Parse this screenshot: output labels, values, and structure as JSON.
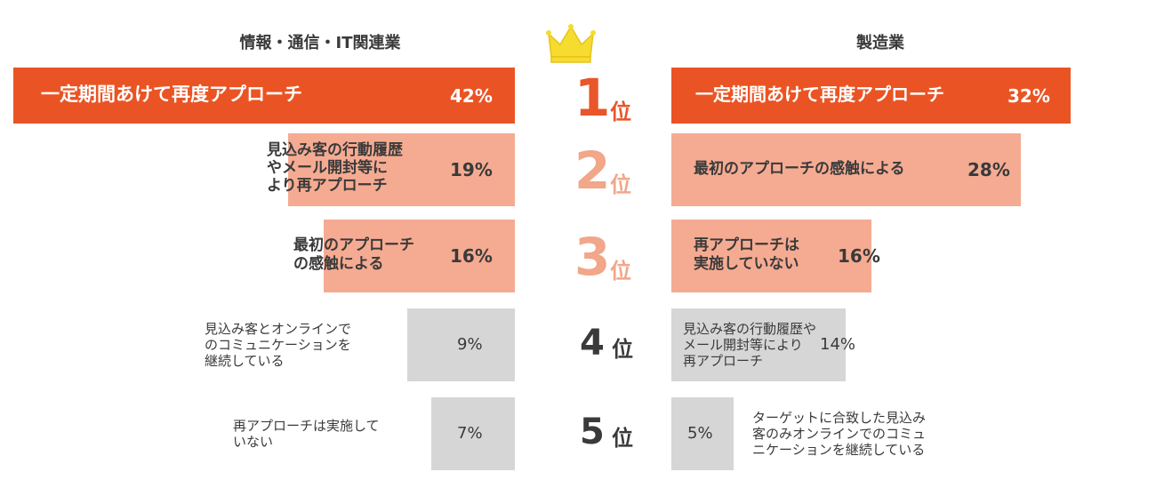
{
  "chart_data": [
    {
      "type": "bar",
      "title": "情報・通信・IT関連業",
      "orientation": "horizontal",
      "categories": [
        "一定期間あけて再度アプローチ",
        "見込み客の行動履歴\nやメール開封等に\nより再アプローチ",
        "最初のアプローチ\nの感触による",
        "見込み客とオンラインで\nのコミュニケーションを\n継続している",
        "再アプローチは実施して\nいない"
      ],
      "values": [
        42,
        19,
        16,
        9,
        7
      ],
      "value_labels": [
        "42%",
        "19%",
        "16%",
        "9%",
        "7%"
      ],
      "unit": "%",
      "xlim": [
        0,
        42
      ]
    },
    {
      "type": "bar",
      "title": "製造業",
      "orientation": "horizontal",
      "categories": [
        "一定期間あけて再度アプローチ",
        "最初のアプローチの感触による",
        "再アプローチは\n実施していない",
        "見込み客の行動履歴や\nメール開封等により\n再アプローチ",
        "ターゲットに合致した見込み\n客のみオンラインでのコミュ\nニケーションを継続している"
      ],
      "values": [
        32,
        28,
        16,
        14,
        5
      ],
      "value_labels": [
        "32%",
        "28%",
        "16%",
        "14%",
        "5%"
      ],
      "unit": "%",
      "xlim": [
        0,
        32
      ]
    }
  ],
  "ranks": [
    {
      "number": "1",
      "suffix": "位",
      "color": "#e8562a"
    },
    {
      "number": "2",
      "suffix": "位",
      "color": "#f2a68a"
    },
    {
      "number": "3",
      "suffix": "位",
      "color": "#f2a68a"
    },
    {
      "number": "4",
      "suffix": "位",
      "color": "#3a3a3a"
    },
    {
      "number": "5",
      "suffix": "位",
      "color": "#3a3a3a"
    }
  ],
  "colors": {
    "rank1": "#ea5424",
    "rank2_3": "#f5ab92",
    "rank4_5": "#d6d6d6",
    "crown": "#f5dc2e"
  }
}
